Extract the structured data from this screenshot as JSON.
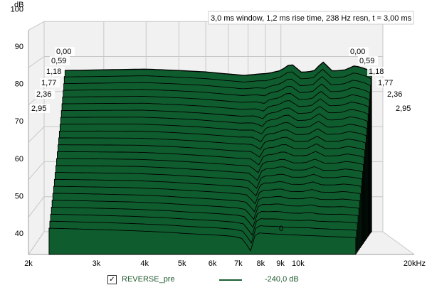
{
  "chart_data": {
    "type": "area",
    "title": "3,0 ms window, 1,2 ms rise time,  238 Hz resn, t = 3,00 ms",
    "ylabel": "dB",
    "xunit": "Hz",
    "ylim": [
      40,
      100
    ],
    "xlim": [
      2000,
      20000
    ],
    "y_ticks": [
      "100",
      "90",
      "80",
      "70",
      "60",
      "50",
      "40"
    ],
    "x_ticks": [
      "2k",
      "3k",
      "4k",
      "5k",
      "6k",
      "7k",
      "8k",
      "9k",
      "10k",
      "20kHz"
    ],
    "time_slices_ms": [
      "0,00",
      "0,59",
      "1,18",
      "1,77",
      "2,36",
      "2,95"
    ],
    "origin_marker": "0",
    "grid": true,
    "fill_color": "#0f5c2e",
    "line_color": "#000000",
    "front_slice_db": [
      [
        2300,
        47.5
      ],
      [
        3000,
        47.2
      ],
      [
        4000,
        46.8
      ],
      [
        5000,
        46.4
      ],
      [
        6000,
        45.9
      ],
      [
        7000,
        45.6
      ],
      [
        8000,
        45.2
      ],
      [
        8600,
        44.5
      ],
      [
        8900,
        42.0
      ],
      [
        9050,
        41.0
      ],
      [
        9200,
        44.8
      ],
      [
        9500,
        46.2
      ],
      [
        10000,
        46.0
      ],
      [
        12000,
        45.6
      ],
      [
        15000,
        45.2
      ],
      [
        18500,
        44.8
      ]
    ],
    "back_slice_db": [
      [
        2300,
        86.0
      ],
      [
        3000,
        86.2
      ],
      [
        4000,
        86.4
      ],
      [
        5000,
        86.0
      ],
      [
        6000,
        85.6
      ],
      [
        7000,
        85.0
      ],
      [
        7800,
        84.6
      ],
      [
        8600,
        85.0
      ],
      [
        9200,
        85.2
      ],
      [
        10000,
        86.0
      ],
      [
        10700,
        88.0
      ],
      [
        11500,
        85.5
      ],
      [
        12500,
        85.8
      ],
      [
        13300,
        88.5
      ],
      [
        14200,
        85.8
      ],
      [
        15500,
        86.2
      ],
      [
        16500,
        87.4
      ],
      [
        17800,
        86.5
      ],
      [
        18500,
        85.6
      ]
    ]
  },
  "legend": {
    "checkbox": "✓",
    "series_name": "REVERSE_pre",
    "series_value": "-240,0 dB"
  }
}
